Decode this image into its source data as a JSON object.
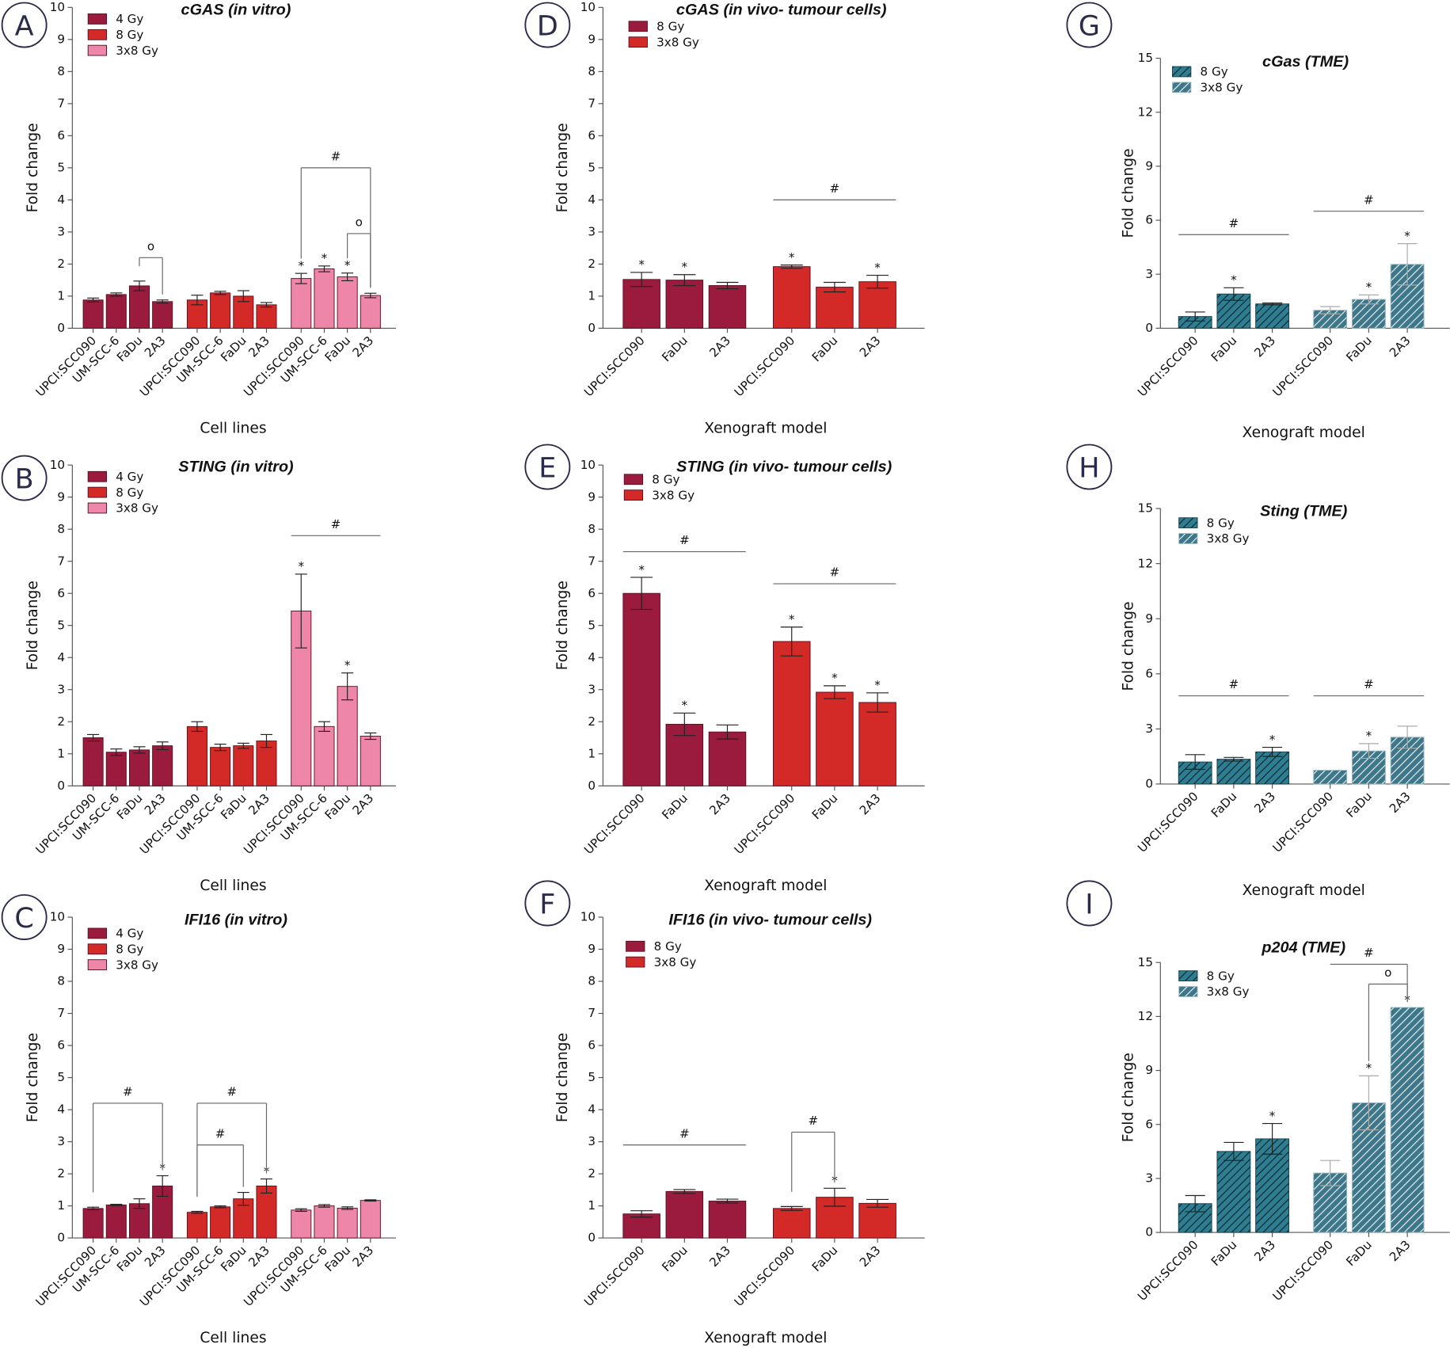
{
  "colors": {
    "4 Gy": "#9b1b3f",
    "8 Gy": "#d42a27",
    "3x8 Gy": "#ee86aa",
    "teal_8Gy": "#2e7d91",
    "teal_3x8Gy": "#4f8a9a"
  },
  "chart_data": [
    {
      "panel": "A",
      "type": "bar",
      "title": "cGAS (in vitro)",
      "xlabel": "Cell lines",
      "ylabel": "Fold change",
      "ylim": [
        0,
        10
      ],
      "yticks": [
        0,
        1,
        2,
        3,
        4,
        5,
        6,
        7,
        8,
        9,
        10
      ],
      "legend_position": "top-left",
      "style": "solid",
      "categories": [
        "UPCI:SCC090",
        "UM-SCC-6",
        "FaDu",
        "2A3"
      ],
      "series": [
        {
          "name": "4 Gy",
          "color": "#9b1b3f",
          "values": [
            0.88,
            1.05,
            1.32,
            0.83
          ],
          "errors": [
            0.06,
            0.05,
            0.15,
            0.05
          ],
          "stars": []
        },
        {
          "name": "8 Gy",
          "color": "#d42a27",
          "values": [
            0.88,
            1.1,
            1.0,
            0.73
          ],
          "errors": [
            0.15,
            0.05,
            0.17,
            0.07
          ],
          "stars": []
        },
        {
          "name": "3x8 Gy",
          "color": "#ee86aa",
          "values": [
            1.55,
            1.85,
            1.6,
            1.02
          ],
          "errors": [
            0.16,
            0.09,
            0.12,
            0.07
          ],
          "stars": [
            0,
            1,
            2
          ]
        }
      ],
      "brackets": [
        {
          "label": "o",
          "from": [
            0,
            2
          ],
          "to": [
            0,
            3
          ],
          "y": 2.2,
          "legs": true
        },
        {
          "label": "#",
          "from": [
            2,
            0
          ],
          "to": [
            2,
            3
          ],
          "y": 5.0,
          "legs": true
        },
        {
          "label": "o",
          "from": [
            2,
            2
          ],
          "to": [
            2,
            3
          ],
          "y": 2.95,
          "legs": true
        }
      ]
    },
    {
      "panel": "B",
      "type": "bar",
      "title": "STING (in vitro)",
      "xlabel": "Cell lines",
      "ylabel": "Fold change",
      "ylim": [
        0,
        10
      ],
      "yticks": [
        0,
        1,
        2,
        3,
        4,
        5,
        6,
        7,
        8,
        9,
        10
      ],
      "legend_position": "top-left",
      "style": "solid",
      "categories": [
        "UPCI:SCC090",
        "UM-SCC-6",
        "FaDu",
        "2A3"
      ],
      "series": [
        {
          "name": "4 Gy",
          "color": "#9b1b3f",
          "values": [
            1.5,
            1.05,
            1.12,
            1.25
          ],
          "errors": [
            0.1,
            0.1,
            0.1,
            0.12
          ],
          "stars": []
        },
        {
          "name": "8 Gy",
          "color": "#d42a27",
          "values": [
            1.85,
            1.2,
            1.25,
            1.4
          ],
          "errors": [
            0.15,
            0.1,
            0.08,
            0.2
          ],
          "stars": []
        },
        {
          "name": "3x8 Gy",
          "color": "#ee86aa",
          "values": [
            5.45,
            1.85,
            3.1,
            1.55
          ],
          "errors": [
            1.15,
            0.15,
            0.42,
            0.1
          ],
          "stars": [
            0,
            2
          ]
        }
      ],
      "brackets": [
        {
          "label": "#",
          "from": [
            2,
            0
          ],
          "to": [
            2,
            3
          ],
          "y": 7.8,
          "legs": false
        }
      ]
    },
    {
      "panel": "C",
      "type": "bar",
      "title": "IFI16 (in vitro)",
      "xlabel": "Cell lines",
      "ylabel": "Fold change",
      "ylim": [
        0,
        10
      ],
      "yticks": [
        0,
        1,
        2,
        3,
        4,
        5,
        6,
        7,
        8,
        9,
        10
      ],
      "legend_position": "top-left",
      "style": "solid",
      "categories": [
        "UPCI:SCC090",
        "UM-SCC-6",
        "FaDu",
        "2A3"
      ],
      "series": [
        {
          "name": "4 Gy",
          "color": "#9b1b3f",
          "values": [
            0.92,
            1.03,
            1.07,
            1.62
          ],
          "errors": [
            0.04,
            0.02,
            0.15,
            0.32
          ],
          "stars": [
            3
          ]
        },
        {
          "name": "8 Gy",
          "color": "#d42a27",
          "values": [
            0.8,
            0.97,
            1.22,
            1.62
          ],
          "errors": [
            0.03,
            0.03,
            0.2,
            0.22
          ],
          "stars": [
            3
          ]
        },
        {
          "name": "3x8 Gy",
          "color": "#ee86aa",
          "values": [
            0.87,
            1.0,
            0.93,
            1.17
          ],
          "errors": [
            0.04,
            0.04,
            0.04,
            0.02
          ],
          "stars": []
        }
      ],
      "brackets": [
        {
          "label": "#",
          "from": [
            0,
            0
          ],
          "to": [
            0,
            3
          ],
          "y": 4.2,
          "legs": true
        },
        {
          "label": "#",
          "from": [
            1,
            0
          ],
          "to": [
            1,
            3
          ],
          "y": 4.2,
          "legs": true
        },
        {
          "label": "#",
          "from": [
            1,
            0
          ],
          "to": [
            1,
            2
          ],
          "y": 2.9,
          "legs": true
        }
      ]
    },
    {
      "panel": "D",
      "type": "bar",
      "title": "cGAS (in vivo- tumour cells)",
      "xlabel": "Xenograft model",
      "ylabel": "Fold change",
      "ylim": [
        0,
        10
      ],
      "yticks": [
        0,
        1,
        2,
        3,
        4,
        5,
        6,
        7,
        8,
        9,
        10
      ],
      "legend_position": "top-left",
      "style": "solid",
      "categories": [
        "UPCI:SCC090",
        "FaDu",
        "2A3"
      ],
      "series": [
        {
          "name": "8 Gy",
          "color": "#9b1b3f",
          "values": [
            1.52,
            1.5,
            1.33
          ],
          "errors": [
            0.22,
            0.17,
            0.1
          ],
          "stars": [
            0,
            1
          ]
        },
        {
          "name": "3x8 Gy",
          "color": "#d42a27",
          "values": [
            1.92,
            1.28,
            1.45
          ],
          "errors": [
            0.05,
            0.15,
            0.2
          ],
          "stars": [
            0,
            2
          ]
        }
      ],
      "brackets": [
        {
          "label": "#",
          "from": [
            1,
            0
          ],
          "to": [
            1,
            2
          ],
          "y": 4.0,
          "legs": false
        }
      ]
    },
    {
      "panel": "E",
      "type": "bar",
      "title": "STING (in vivo- tumour cells)",
      "xlabel": "Xenograft model",
      "ylabel": "Fold change",
      "ylim": [
        0,
        10
      ],
      "yticks": [
        0,
        1,
        2,
        3,
        4,
        5,
        6,
        7,
        8,
        9,
        10
      ],
      "legend_position": "top-left",
      "style": "solid",
      "categories": [
        "UPCI:SCC090",
        "FaDu",
        "2A3"
      ],
      "series": [
        {
          "name": "8 Gy",
          "color": "#9b1b3f",
          "values": [
            6.0,
            1.92,
            1.68
          ],
          "errors": [
            0.5,
            0.35,
            0.22
          ],
          "stars": [
            0,
            1
          ]
        },
        {
          "name": "3x8 Gy",
          "color": "#d42a27",
          "values": [
            4.5,
            2.92,
            2.6
          ],
          "errors": [
            0.45,
            0.2,
            0.3
          ],
          "stars": [
            0,
            1,
            2
          ]
        }
      ],
      "brackets": [
        {
          "label": "#",
          "from": [
            0,
            0
          ],
          "to": [
            0,
            2
          ],
          "y": 7.3,
          "legs": false
        },
        {
          "label": "#",
          "from": [
            1,
            0
          ],
          "to": [
            1,
            2
          ],
          "y": 6.3,
          "legs": false
        }
      ]
    },
    {
      "panel": "F",
      "type": "bar",
      "title": "IFI16 (in vivo- tumour cells)",
      "xlabel": "Xenograft model",
      "ylabel": "Fold change",
      "ylim": [
        0,
        10
      ],
      "yticks": [
        0,
        1,
        2,
        3,
        4,
        5,
        6,
        7,
        8,
        9,
        10
      ],
      "legend_position": "top-left",
      "style": "solid",
      "categories": [
        "UPCI:SCC090",
        "FaDu",
        "2A3"
      ],
      "series": [
        {
          "name": "8 Gy",
          "color": "#9b1b3f",
          "values": [
            0.75,
            1.45,
            1.15
          ],
          "errors": [
            0.1,
            0.06,
            0.06
          ],
          "stars": []
        },
        {
          "name": "3x8 Gy",
          "color": "#d42a27",
          "values": [
            0.92,
            1.27,
            1.08
          ],
          "errors": [
            0.06,
            0.28,
            0.12
          ],
          "stars": [
            1
          ]
        }
      ],
      "brackets": [
        {
          "label": "#",
          "from": [
            0,
            0
          ],
          "to": [
            0,
            2
          ],
          "y": 2.9,
          "legs": false
        },
        {
          "label": "#",
          "from": [
            1,
            0
          ],
          "to": [
            1,
            1
          ],
          "y": 3.3,
          "legs": true
        }
      ]
    },
    {
      "panel": "G",
      "type": "bar",
      "title": "cGas (TME)",
      "xlabel": "Xenograft model",
      "ylabel": "Fold change",
      "ylim": [
        0,
        15
      ],
      "yticks": [
        0,
        3,
        6,
        9,
        12,
        15
      ],
      "legend_position": "top-left",
      "style": "hatched",
      "categories": [
        "UPCI:SCC090",
        "FaDu",
        "2A3"
      ],
      "series": [
        {
          "name": "8 Gy",
          "color": "#2e7d91",
          "values": [
            0.65,
            1.9,
            1.35
          ],
          "errors": [
            0.25,
            0.35,
            0.05
          ],
          "stars": [
            1
          ]
        },
        {
          "name": "3x8 Gy",
          "color": "#4f8a9a",
          "values": [
            1.0,
            1.6,
            3.55
          ],
          "errors": [
            0.2,
            0.25,
            1.15
          ],
          "stars": [
            1,
            2
          ]
        }
      ],
      "brackets": [
        {
          "label": "#",
          "from": [
            0,
            0
          ],
          "to": [
            0,
            2
          ],
          "y": 5.2,
          "legs": false
        },
        {
          "label": "#",
          "from": [
            1,
            0
          ],
          "to": [
            1,
            2
          ],
          "y": 6.5,
          "legs": false
        }
      ]
    },
    {
      "panel": "H",
      "type": "bar",
      "title": "Sting (TME)",
      "xlabel": "Xenograft model",
      "ylabel": "Fold change",
      "ylim": [
        0,
        15
      ],
      "yticks": [
        0,
        3,
        6,
        9,
        12,
        15
      ],
      "legend_position": "top-left",
      "style": "hatched",
      "categories": [
        "UPCI:SCC090",
        "FaDu",
        "2A3"
      ],
      "series": [
        {
          "name": "8 Gy",
          "color": "#2e7d91",
          "values": [
            1.2,
            1.35,
            1.75
          ],
          "errors": [
            0.4,
            0.1,
            0.25
          ],
          "stars": [
            2
          ]
        },
        {
          "name": "3x8 Gy",
          "color": "#4f8a9a",
          "values": [
            0.75,
            1.8,
            2.55
          ],
          "errors": [
            0.0,
            0.4,
            0.6
          ],
          "stars": [
            1
          ]
        }
      ],
      "brackets": [
        {
          "label": "#",
          "from": [
            0,
            0
          ],
          "to": [
            0,
            2
          ],
          "y": 4.8,
          "legs": false
        },
        {
          "label": "#",
          "from": [
            1,
            0
          ],
          "to": [
            1,
            2
          ],
          "y": 4.8,
          "legs": false
        }
      ]
    },
    {
      "panel": "I",
      "type": "bar",
      "title": "p204 (TME)",
      "xlabel": "Xenograft model",
      "ylabel": "Fold change",
      "ylim": [
        0,
        15
      ],
      "yticks": [
        0,
        3,
        6,
        9,
        12,
        15
      ],
      "legend_position": "top-left",
      "style": "hatched",
      "categories": [
        "UPCI:SCC090",
        "FaDu",
        "2A3"
      ],
      "series": [
        {
          "name": "8 Gy",
          "color": "#2e7d91",
          "values": [
            1.6,
            4.5,
            5.2
          ],
          "errors": [
            0.45,
            0.5,
            0.85
          ],
          "stars": [
            2
          ]
        },
        {
          "name": "3x8 Gy",
          "color": "#4f8a9a",
          "values": [
            3.3,
            7.2,
            12.5
          ],
          "errors": [
            0.7,
            1.5,
            0.0
          ],
          "stars": [
            1,
            2
          ]
        }
      ],
      "brackets": [
        {
          "label": "#",
          "from": [
            1,
            0
          ],
          "to": [
            1,
            2
          ],
          "y": 14.9,
          "legs": "right"
        },
        {
          "label": "o",
          "from": [
            1,
            1
          ],
          "to": [
            1,
            2
          ],
          "y": 13.8,
          "legs": true
        }
      ]
    }
  ]
}
